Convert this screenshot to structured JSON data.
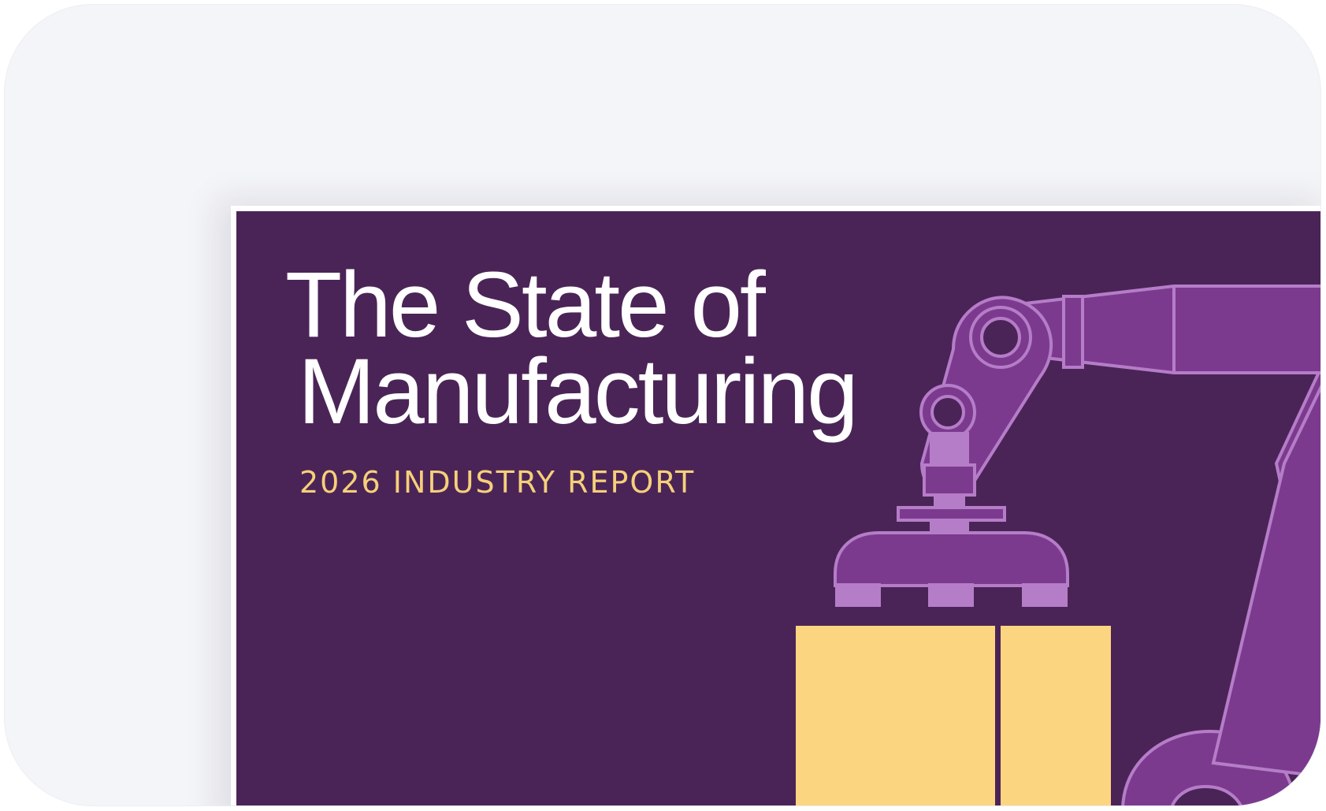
{
  "cover": {
    "title_line1": "The State of",
    "title_line2": "Manufacturing",
    "subtitle": "2026 INDUSTRY REPORT"
  },
  "colors": {
    "background": "#4b2457",
    "title": "#ffffff",
    "subtitle": "#f6d07a",
    "arm_dark": "#7c3a8f",
    "arm_light": "#b57dc8",
    "box": "#fcd580"
  },
  "illustration": {
    "icon": "robotic-arm-icon",
    "box_icon": "cardboard-box-icon"
  }
}
